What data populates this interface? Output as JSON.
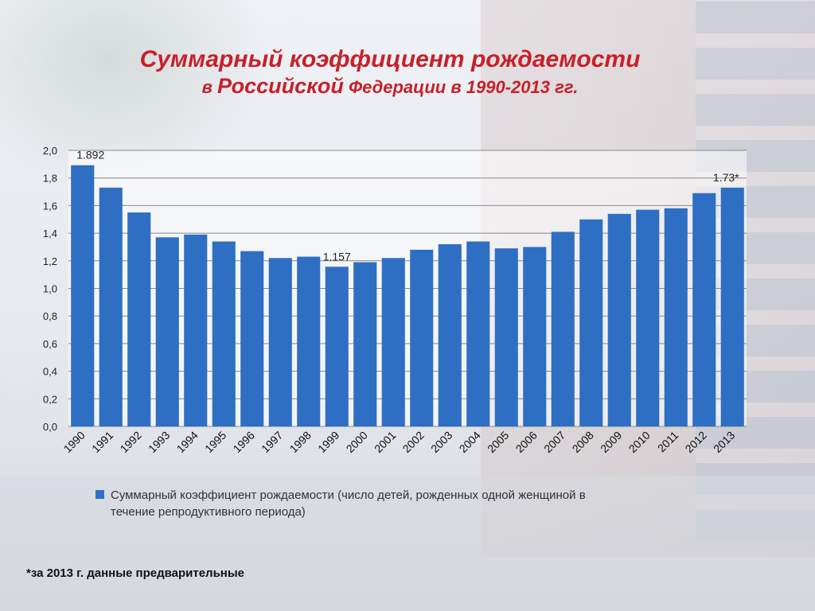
{
  "title": {
    "line1": "Суммарный коэффициент рождаемости",
    "line2_prefix": "в ",
    "line2_big": "Российской",
    "line2_suffix": " Федерации в 1990-2013 гг."
  },
  "chart_data": {
    "type": "bar",
    "categories": [
      "1990",
      "1991",
      "1992",
      "1993",
      "1994",
      "1995",
      "1996",
      "1997",
      "1998",
      "1999",
      "2000",
      "2001",
      "2002",
      "2003",
      "2004",
      "2005",
      "2006",
      "2007",
      "2008",
      "2009",
      "2010",
      "2011",
      "2012",
      "2013"
    ],
    "series": [
      {
        "name": "Суммарный коэффициент рождаемости (число детей, рожденных одной женщиной в течение репродуктивного периода)",
        "values": [
          1.892,
          1.73,
          1.55,
          1.37,
          1.39,
          1.34,
          1.27,
          1.22,
          1.23,
          1.157,
          1.19,
          1.22,
          1.28,
          1.32,
          1.34,
          1.29,
          1.3,
          1.41,
          1.5,
          1.54,
          1.57,
          1.58,
          1.69,
          1.73
        ]
      }
    ],
    "ylim": [
      0,
      2.0
    ],
    "yticks": [
      "0,0",
      "0,2",
      "0,4",
      "0,6",
      "0,8",
      "1,0",
      "1,2",
      "1,4",
      "1,6",
      "1,8",
      "2,0"
    ],
    "data_labels": [
      {
        "index": 0,
        "text": "1.892"
      },
      {
        "index": 9,
        "text": "1.157"
      },
      {
        "index": 23,
        "text": "1.73*"
      }
    ],
    "grid": true,
    "legend": "bottom",
    "bar_color": "#2e6fc4"
  },
  "legend": {
    "line1": "Суммарный коэффициент рождаемости (число детей, рожденных одной женщиной в",
    "line2": "течение репродуктивного периода)"
  },
  "footnote": "*за 2013 г. данные предварительные"
}
